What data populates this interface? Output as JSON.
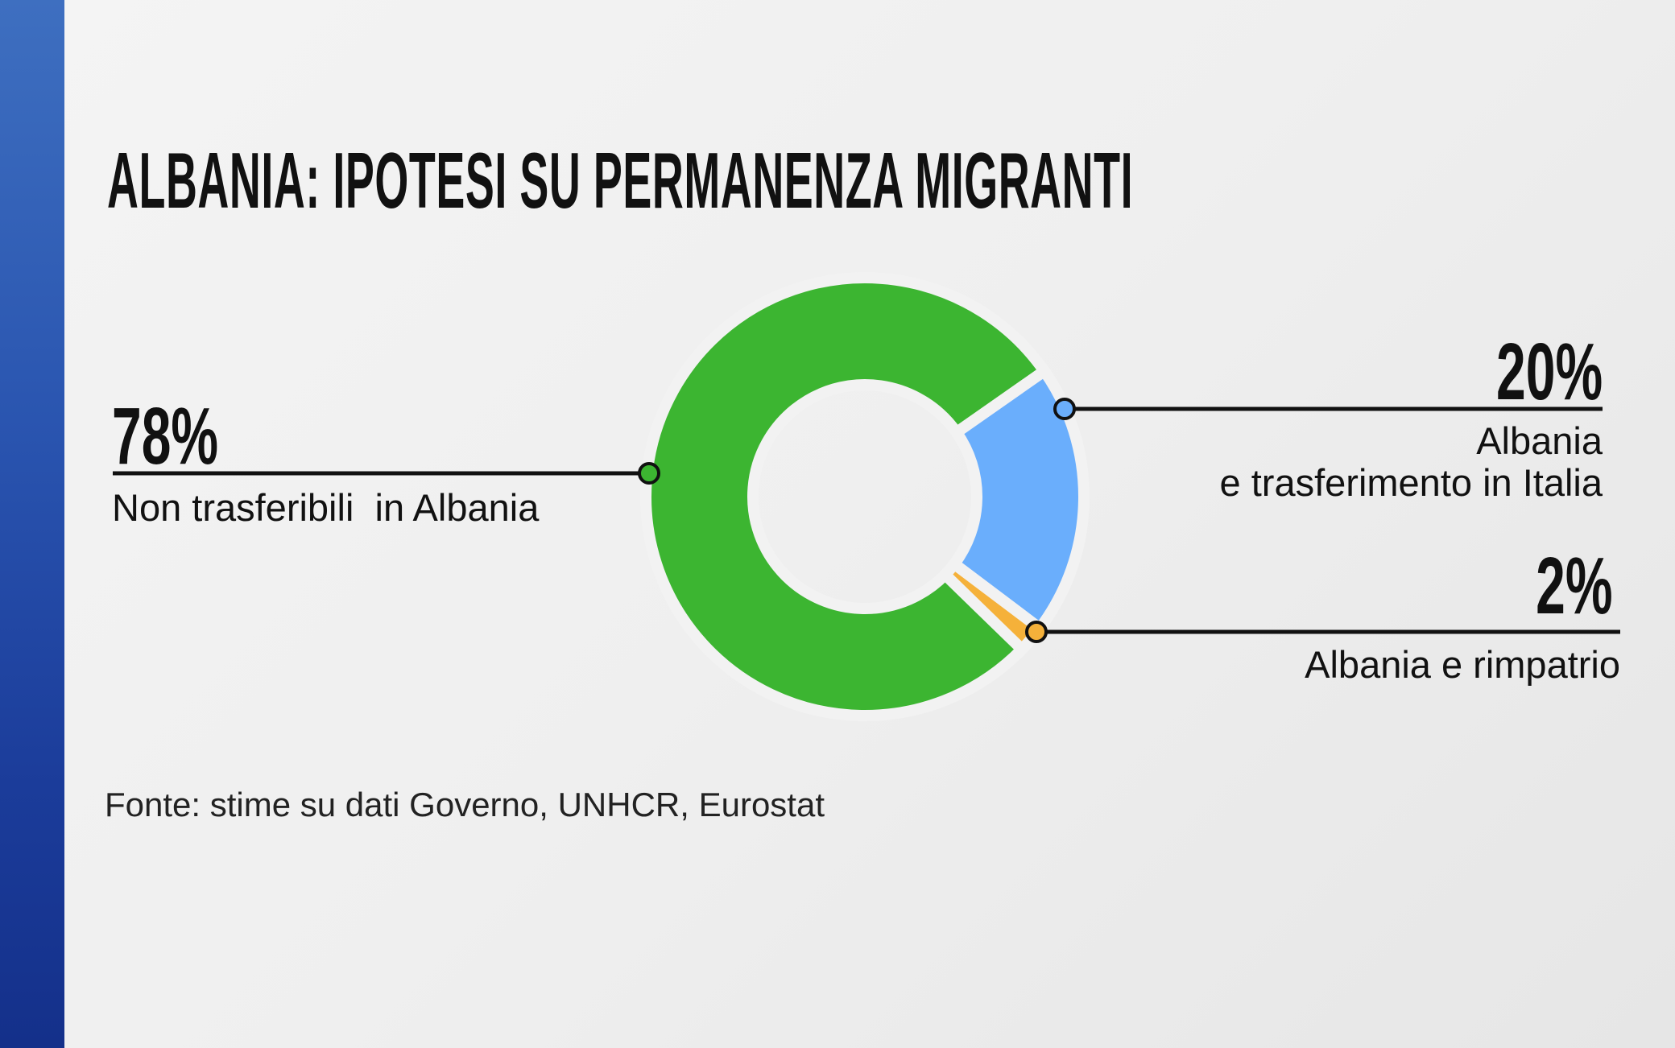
{
  "chart_data": {
    "type": "donut",
    "title": "ALBANIA: IPOTESI SU PERMANENZA MIGRANTI",
    "categories": [
      "Non trasferibili  in Albania",
      "Albania\ne trasferimento in Italia",
      "Albania e rimpatrio"
    ],
    "values": [
      78,
      20,
      2
    ],
    "value_labels": [
      "78%",
      "20%",
      "2%"
    ],
    "colors": [
      "#3cb531",
      "#6aaefc",
      "#f5b13a"
    ],
    "source": "Fonte: stime su dati Governo, UNHCR, Eurostat"
  }
}
